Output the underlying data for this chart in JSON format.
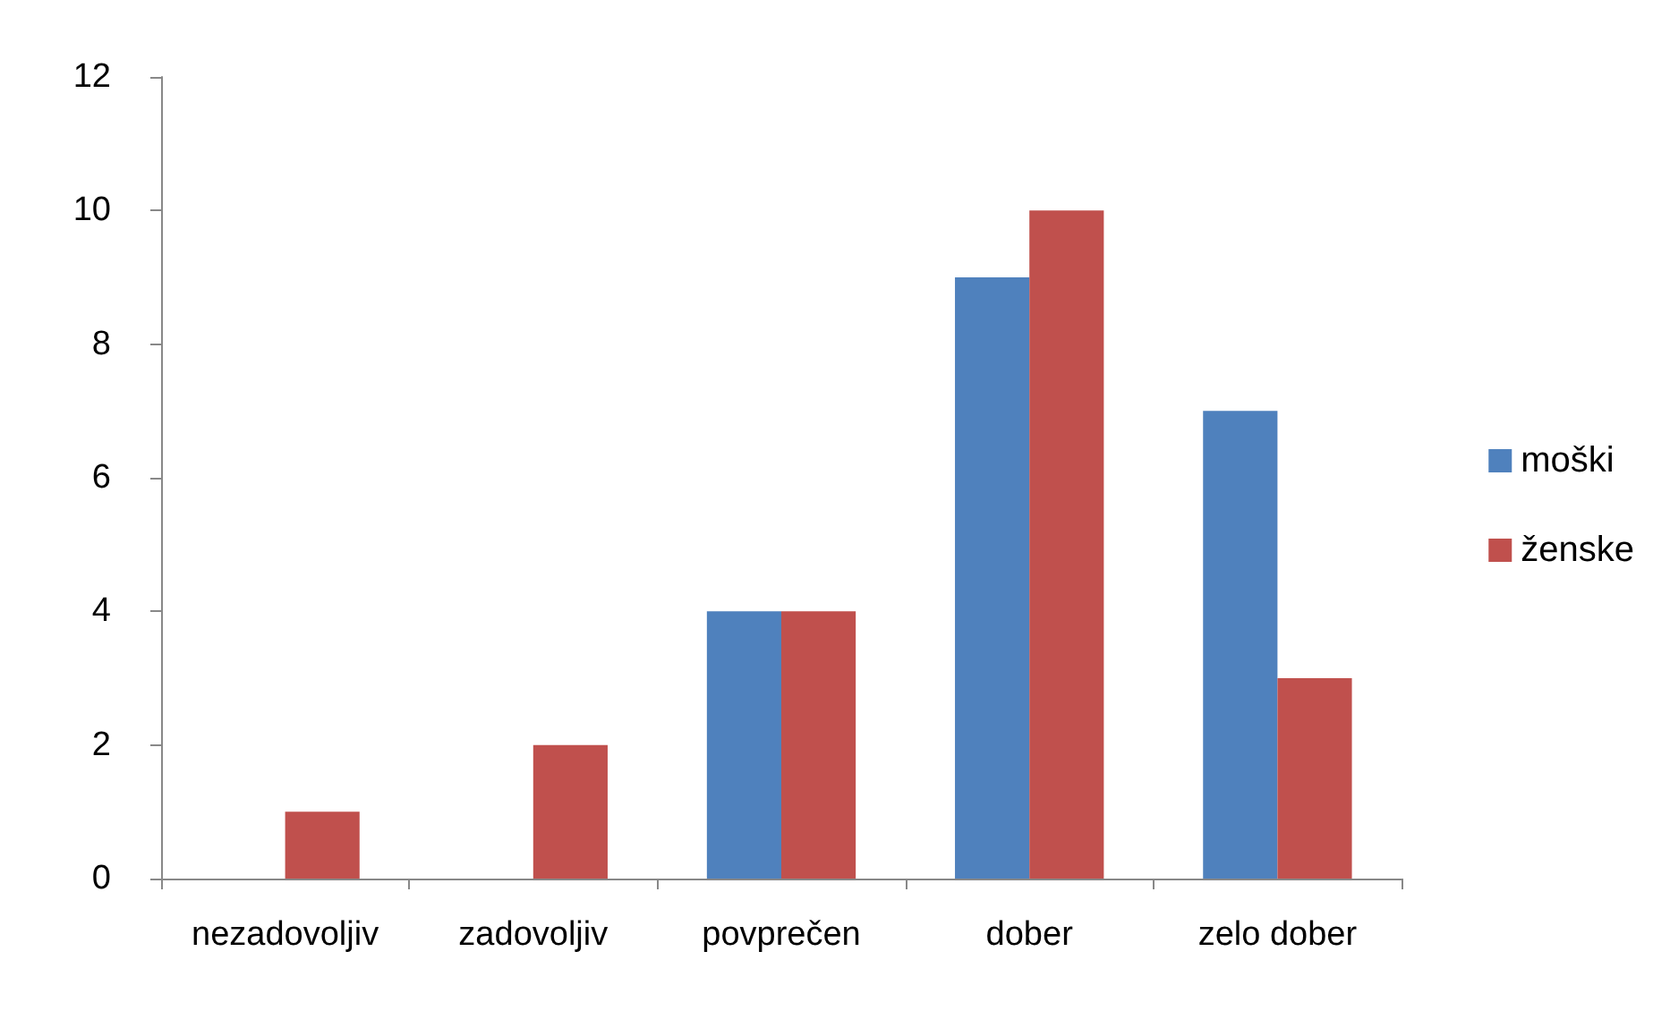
{
  "chart_data": {
    "type": "bar",
    "categories": [
      "nezadovoljiv",
      "zadovoljiv",
      "povprečen",
      "dober",
      "zelo dober"
    ],
    "series": [
      {
        "name": "moški",
        "color": "#4f81bd",
        "values": [
          0,
          0,
          4,
          9,
          7
        ]
      },
      {
        "name": "ženske",
        "color": "#c0504d",
        "values": [
          1,
          2,
          4,
          10,
          3
        ]
      }
    ],
    "ylim": [
      0,
      12
    ],
    "yticks": [
      0,
      2,
      4,
      6,
      8,
      10,
      12
    ],
    "grid": false,
    "legend": "right"
  }
}
